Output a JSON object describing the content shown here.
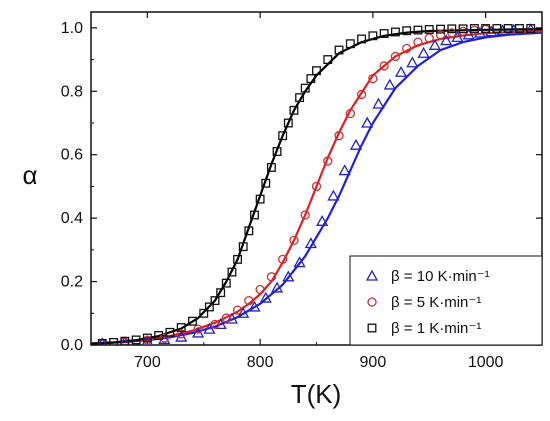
{
  "chart_data": {
    "type": "scatter",
    "xlabel": "T(K)",
    "ylabel": "α",
    "xlim": [
      650,
      1050
    ],
    "ylim": [
      0,
      1.05
    ],
    "x_ticks": [
      700,
      800,
      900,
      1000
    ],
    "x_tick_labels": [
      "700",
      "800",
      "900",
      "1000"
    ],
    "y_ticks": [
      0.0,
      0.2,
      0.4,
      0.6,
      0.8,
      1.0
    ],
    "y_tick_labels": [
      "0.0",
      "0.2",
      "0.4",
      "0.6",
      "0.8",
      "1.0"
    ],
    "grid": false,
    "legend_position": "bottom-right",
    "series": [
      {
        "name": "β = 10 K·min⁻¹",
        "marker": "triangle",
        "color": "#2323c8",
        "points": [
          [
            660,
            0.005
          ],
          [
            680,
            0.008
          ],
          [
            700,
            0.012
          ],
          [
            715,
            0.018
          ],
          [
            730,
            0.025
          ],
          [
            745,
            0.038
          ],
          [
            755,
            0.05
          ],
          [
            765,
            0.065
          ],
          [
            775,
            0.082
          ],
          [
            785,
            0.1
          ],
          [
            795,
            0.12
          ],
          [
            805,
            0.148
          ],
          [
            815,
            0.18
          ],
          [
            825,
            0.215
          ],
          [
            835,
            0.26
          ],
          [
            845,
            0.32
          ],
          [
            855,
            0.39
          ],
          [
            865,
            0.47
          ],
          [
            875,
            0.55
          ],
          [
            885,
            0.63
          ],
          [
            895,
            0.7
          ],
          [
            905,
            0.76
          ],
          [
            915,
            0.82
          ],
          [
            925,
            0.86
          ],
          [
            935,
            0.89
          ],
          [
            945,
            0.92
          ],
          [
            955,
            0.945
          ],
          [
            965,
            0.96
          ],
          [
            975,
            0.97
          ],
          [
            985,
            0.978
          ],
          [
            995,
            0.984
          ],
          [
            1005,
            0.988
          ],
          [
            1015,
            0.991
          ],
          [
            1025,
            0.993
          ],
          [
            1040,
            0.995
          ]
        ],
        "fit": [
          [
            650,
            0.004
          ],
          [
            680,
            0.009
          ],
          [
            700,
            0.015
          ],
          [
            720,
            0.024
          ],
          [
            740,
            0.038
          ],
          [
            760,
            0.058
          ],
          [
            780,
            0.088
          ],
          [
            800,
            0.13
          ],
          [
            820,
            0.19
          ],
          [
            840,
            0.28
          ],
          [
            860,
            0.4
          ],
          [
            870,
            0.47
          ],
          [
            880,
            0.55
          ],
          [
            890,
            0.63
          ],
          [
            900,
            0.7
          ],
          [
            920,
            0.81
          ],
          [
            940,
            0.88
          ],
          [
            960,
            0.93
          ],
          [
            980,
            0.955
          ],
          [
            1000,
            0.97
          ],
          [
            1020,
            0.978
          ],
          [
            1050,
            0.985
          ]
        ]
      },
      {
        "name": "β = 5 K·min⁻¹",
        "marker": "circle",
        "color": "#d03030",
        "points": [
          [
            660,
            0.005
          ],
          [
            680,
            0.01
          ],
          [
            700,
            0.015
          ],
          [
            715,
            0.022
          ],
          [
            730,
            0.035
          ],
          [
            745,
            0.05
          ],
          [
            760,
            0.065
          ],
          [
            770,
            0.085
          ],
          [
            780,
            0.11
          ],
          [
            790,
            0.14
          ],
          [
            800,
            0.175
          ],
          [
            810,
            0.215
          ],
          [
            820,
            0.27
          ],
          [
            830,
            0.33
          ],
          [
            840,
            0.41
          ],
          [
            850,
            0.5
          ],
          [
            860,
            0.58
          ],
          [
            870,
            0.66
          ],
          [
            880,
            0.73
          ],
          [
            890,
            0.79
          ],
          [
            900,
            0.84
          ],
          [
            910,
            0.88
          ],
          [
            920,
            0.91
          ],
          [
            930,
            0.935
          ],
          [
            940,
            0.955
          ],
          [
            950,
            0.968
          ],
          [
            960,
            0.978
          ],
          [
            970,
            0.984
          ],
          [
            980,
            0.989
          ],
          [
            990,
            0.992
          ],
          [
            1000,
            0.995
          ]
        ],
        "fit": [
          [
            650,
            0.005
          ],
          [
            680,
            0.01
          ],
          [
            700,
            0.017
          ],
          [
            720,
            0.028
          ],
          [
            740,
            0.045
          ],
          [
            760,
            0.07
          ],
          [
            780,
            0.105
          ],
          [
            790,
            0.13
          ],
          [
            800,
            0.16
          ],
          [
            810,
            0.2
          ],
          [
            820,
            0.26
          ],
          [
            830,
            0.33
          ],
          [
            840,
            0.41
          ],
          [
            850,
            0.5
          ],
          [
            860,
            0.59
          ],
          [
            870,
            0.67
          ],
          [
            880,
            0.74
          ],
          [
            900,
            0.85
          ],
          [
            920,
            0.91
          ],
          [
            940,
            0.945
          ],
          [
            960,
            0.965
          ],
          [
            980,
            0.976
          ],
          [
            1000,
            0.983
          ],
          [
            1050,
            0.99
          ]
        ]
      },
      {
        "name": "β = 1 K·min⁻¹",
        "marker": "square",
        "color": "#111111",
        "points": [
          [
            660,
            0.005
          ],
          [
            670,
            0.008
          ],
          [
            680,
            0.012
          ],
          [
            690,
            0.016
          ],
          [
            700,
            0.022
          ],
          [
            710,
            0.03
          ],
          [
            720,
            0.04
          ],
          [
            730,
            0.055
          ],
          [
            740,
            0.075
          ],
          [
            750,
            0.1
          ],
          [
            755,
            0.12
          ],
          [
            760,
            0.14
          ],
          [
            765,
            0.165
          ],
          [
            770,
            0.195
          ],
          [
            775,
            0.23
          ],
          [
            780,
            0.27
          ],
          [
            785,
            0.31
          ],
          [
            790,
            0.36
          ],
          [
            795,
            0.41
          ],
          [
            800,
            0.46
          ],
          [
            805,
            0.51
          ],
          [
            810,
            0.56
          ],
          [
            815,
            0.61
          ],
          [
            820,
            0.66
          ],
          [
            825,
            0.7
          ],
          [
            830,
            0.74
          ],
          [
            835,
            0.78
          ],
          [
            840,
            0.81
          ],
          [
            845,
            0.84
          ],
          [
            850,
            0.865
          ],
          [
            860,
            0.9
          ],
          [
            870,
            0.93
          ],
          [
            880,
            0.95
          ],
          [
            890,
            0.965
          ],
          [
            900,
            0.975
          ],
          [
            910,
            0.982
          ],
          [
            920,
            0.987
          ],
          [
            930,
            0.991
          ],
          [
            940,
            0.993
          ],
          [
            950,
            0.995
          ],
          [
            960,
            0.996
          ],
          [
            970,
            0.997
          ],
          [
            980,
            0.997
          ],
          [
            990,
            0.998
          ],
          [
            1000,
            0.998
          ],
          [
            1010,
            0.998
          ],
          [
            1020,
            0.998
          ],
          [
            1030,
            0.998
          ],
          [
            1040,
            0.998
          ]
        ],
        "fit": [
          [
            650,
            0.004
          ],
          [
            670,
            0.008
          ],
          [
            690,
            0.015
          ],
          [
            710,
            0.028
          ],
          [
            730,
            0.052
          ],
          [
            745,
            0.085
          ],
          [
            760,
            0.14
          ],
          [
            770,
            0.2
          ],
          [
            780,
            0.27
          ],
          [
            790,
            0.37
          ],
          [
            800,
            0.47
          ],
          [
            810,
            0.57
          ],
          [
            820,
            0.66
          ],
          [
            830,
            0.74
          ],
          [
            840,
            0.8
          ],
          [
            850,
            0.85
          ],
          [
            870,
            0.92
          ],
          [
            890,
            0.955
          ],
          [
            910,
            0.975
          ],
          [
            930,
            0.985
          ],
          [
            950,
            0.99
          ],
          [
            1000,
            0.994
          ],
          [
            1050,
            0.996
          ]
        ]
      }
    ]
  }
}
